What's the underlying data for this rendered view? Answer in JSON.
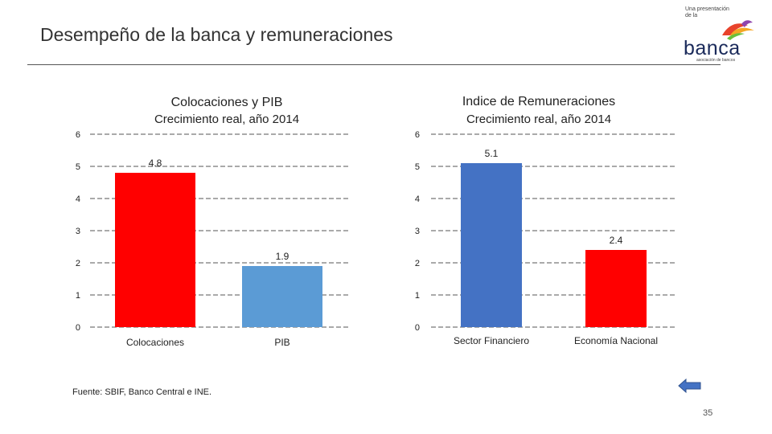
{
  "slide": {
    "title": "Desempeño de la banca y remuneraciones",
    "source": "Fuente: SBIF, Banco Central e INE.",
    "page_number": "35",
    "logo": {
      "tagline": "Una presentación de la",
      "word": "banca",
      "subtitle": "asociación de bancos",
      "icon": "bird-logo-icon"
    },
    "nav_icon": "back-arrow-icon"
  },
  "chart_data": [
    {
      "type": "bar",
      "title": "Colocaciones y PIB",
      "subtitle": "Crecimiento real, año 2014",
      "categories": [
        "Colocaciones",
        "PIB"
      ],
      "values": [
        4.8,
        1.9
      ],
      "data_labels": [
        "4.8",
        "1.9"
      ],
      "colors": [
        "#ff0000",
        "#5b9bd5"
      ],
      "ylim": [
        0,
        6
      ],
      "yticks": [
        "0",
        "1",
        "2",
        "3",
        "4",
        "5",
        "6"
      ],
      "grid": true
    },
    {
      "type": "bar",
      "title": "Indice de Remuneraciones",
      "subtitle": "Crecimiento real, año 2014",
      "categories": [
        "Sector Financiero",
        "Economía Nacional"
      ],
      "values": [
        5.1,
        2.4
      ],
      "data_labels": [
        "5.1",
        "2.4"
      ],
      "colors": [
        "#4472c4",
        "#ff0000"
      ],
      "ylim": [
        0,
        6
      ],
      "yticks": [
        "0",
        "1",
        "2",
        "3",
        "4",
        "5",
        "6"
      ],
      "grid": true
    }
  ]
}
